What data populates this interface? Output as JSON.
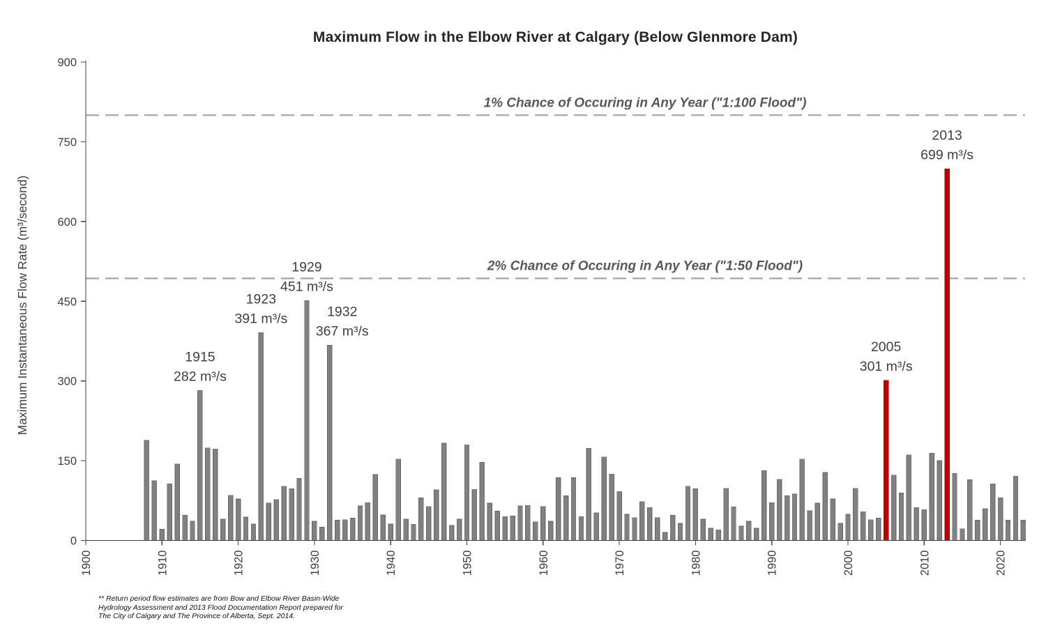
{
  "chart_data": {
    "type": "bar",
    "title": "Maximum Flow in the Elbow River at Calgary (Below Glenmore Dam)",
    "xlabel": "",
    "ylabel": "Maximum Instantaneous Flow Rate (m³/second)",
    "ylim": [
      0,
      900
    ],
    "yticks": [
      0,
      150,
      300,
      450,
      600,
      750,
      900
    ],
    "xticks": [
      1900,
      1910,
      1920,
      1930,
      1940,
      1950,
      1960,
      1970,
      1980,
      1990,
      2000,
      2010,
      2020
    ],
    "grid": false,
    "legend": null,
    "bar_color": "#818181",
    "bar_edge_color": "#646464",
    "highlight_color": "#C00000",
    "highlight_edge_color": "#9C0000",
    "reference_line_color": "#A6A6A6",
    "highlight_years": [
      2005,
      2013
    ],
    "years": [
      1908,
      1909,
      1910,
      1911,
      1912,
      1913,
      1914,
      1915,
      1916,
      1917,
      1918,
      1919,
      1920,
      1921,
      1922,
      1923,
      1924,
      1925,
      1926,
      1927,
      1928,
      1929,
      1930,
      1931,
      1932,
      1933,
      1934,
      1935,
      1936,
      1937,
      1938,
      1939,
      1940,
      1941,
      1942,
      1943,
      1944,
      1945,
      1946,
      1947,
      1948,
      1949,
      1950,
      1951,
      1952,
      1953,
      1954,
      1955,
      1956,
      1957,
      1958,
      1959,
      1960,
      1961,
      1962,
      1963,
      1964,
      1965,
      1966,
      1967,
      1968,
      1969,
      1970,
      1971,
      1972,
      1973,
      1974,
      1975,
      1976,
      1977,
      1978,
      1979,
      1980,
      1981,
      1982,
      1983,
      1984,
      1985,
      1986,
      1987,
      1988,
      1989,
      1990,
      1991,
      1992,
      1993,
      1994,
      1995,
      1996,
      1997,
      1998,
      1999,
      2000,
      2001,
      2002,
      2003,
      2004,
      2005,
      2006,
      2007,
      2008,
      2009,
      2010,
      2011,
      2012,
      2013,
      2014,
      2015,
      2016,
      2017,
      2018,
      2019,
      2020,
      2021,
      2022,
      2023
    ],
    "values": [
      188,
      112,
      21,
      106,
      144,
      47,
      36,
      282,
      174,
      172,
      40,
      85,
      78,
      44,
      31,
      391,
      70,
      77,
      102,
      97,
      117,
      451,
      36,
      25,
      367,
      38,
      39,
      42,
      65,
      71,
      124,
      48,
      31,
      153,
      40,
      30,
      80,
      64,
      95,
      183,
      28,
      40,
      180,
      96,
      147,
      70,
      55,
      45,
      46,
      65,
      66,
      35,
      64,
      36,
      118,
      84,
      118,
      45,
      173,
      52,
      157,
      125,
      92,
      49,
      43,
      73,
      62,
      43,
      15,
      47,
      32,
      102,
      97,
      40,
      23,
      20,
      98,
      63,
      27,
      36,
      23,
      131,
      71,
      115,
      84,
      87,
      153,
      56,
      70,
      128,
      78,
      32,
      49,
      98,
      54,
      39,
      42,
      301,
      123,
      89,
      161,
      62,
      58,
      164,
      150,
      699,
      126,
      22,
      114,
      38,
      60,
      106,
      80,
      38,
      121,
      38
    ],
    "reference_lines": [
      {
        "label": "1% Chance of Occuring in Any Year (\"1:100 Flood\")",
        "value": 800
      },
      {
        "label": "2% Chance of Occuring in Any Year (\"1:50 Flood\")",
        "value": 493
      }
    ],
    "annotations": [
      {
        "year": 1915,
        "year_label": "1915",
        "value_label": "282 m³/s"
      },
      {
        "year": 1923,
        "year_label": "1923",
        "value_label": "391 m³/s"
      },
      {
        "year": 1929,
        "year_label": "1929",
        "value_label": "451 m³/s"
      },
      {
        "year": 1932,
        "year_label": "1932",
        "value_label": "367 m³/s"
      },
      {
        "year": 2005,
        "year_label": "2005",
        "value_label": "301 m³/s"
      },
      {
        "year": 2013,
        "year_label": "2013",
        "value_label": "699 m³/s"
      }
    ]
  },
  "footnote": {
    "lines": [
      "**  Return period flow estimates are from Bow and Elbow River Basin-Wide",
      "Hydrology Assessment and 2013 Flood Documentation Report prepared for",
      "The City of Calgary and The Province of Alberta, Sept. 2014."
    ]
  }
}
